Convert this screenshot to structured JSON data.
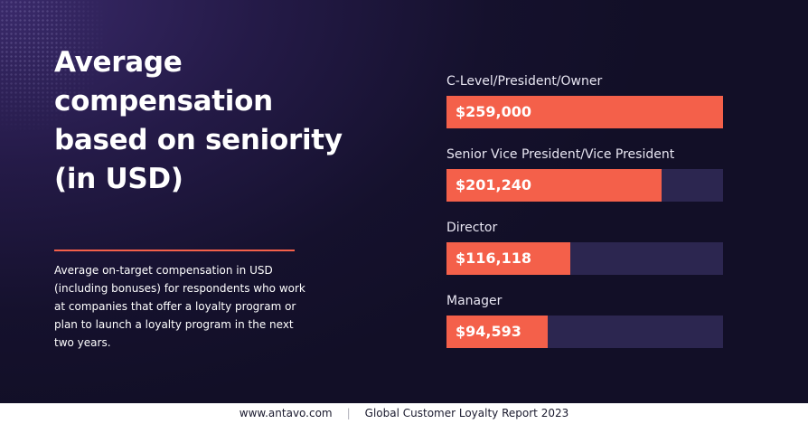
{
  "heading": {
    "title": "Average compensation based on seniority (in USD)",
    "description": "Average on-target compensation in USD (including bonuses) for respondents who work at companies that offer a loyalty program or plan to launch a loyalty program in the next two years."
  },
  "colors": {
    "background": "#1b1538",
    "bar_fill": "#f4604a",
    "bar_track": "#2c2650",
    "divider": "#f4604a",
    "text": "#ffffff"
  },
  "chart_data": {
    "type": "bar",
    "orientation": "horizontal",
    "categories": [
      "C-Level/President/Owner",
      "Senior Vice President/Vice President",
      "Director",
      "Manager"
    ],
    "values": [
      259000,
      201240,
      116118,
      94593
    ],
    "value_labels": [
      "$259,000",
      "$201,240",
      "$116,118",
      "$94,593"
    ],
    "xlim": [
      0,
      259000
    ],
    "grid": false
  },
  "footer": {
    "website": "www.antavo.com",
    "separator": "|",
    "report": "Global Customer Loyalty Report 2023"
  }
}
